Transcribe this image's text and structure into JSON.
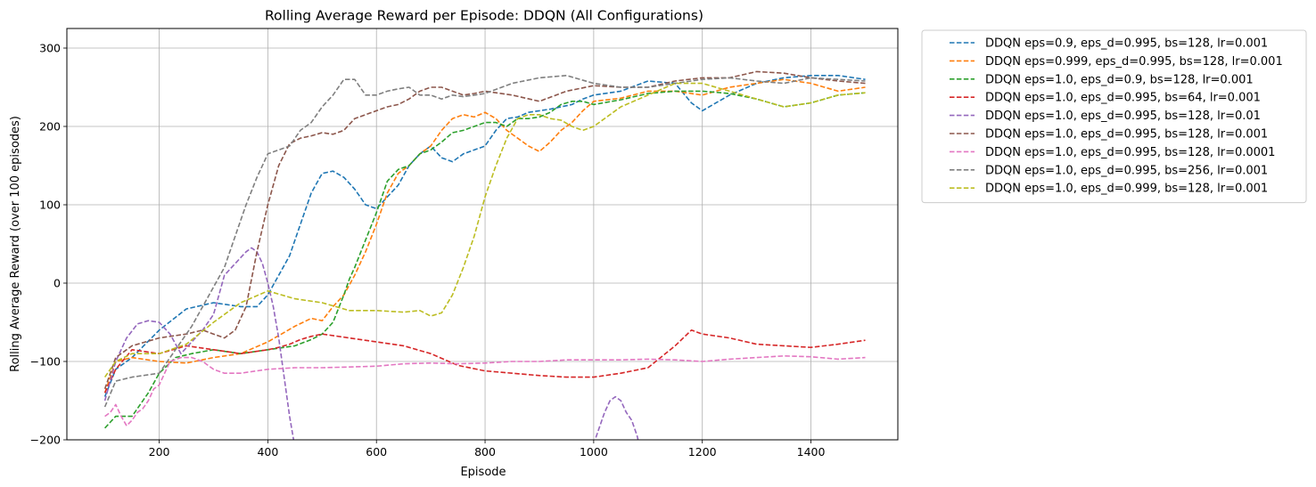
{
  "chart_data": {
    "type": "line",
    "title": "Rolling Average Reward per Episode: DDQN (All Configurations)",
    "xlabel": "Episode",
    "ylabel": "Rolling Average Reward (over 100 episodes)",
    "xlim": [
      30,
      1560
    ],
    "ylim": [
      -200,
      325
    ],
    "xticks": [
      200,
      400,
      600,
      800,
      1000,
      1200,
      1400
    ],
    "yticks": [
      -200,
      -100,
      0,
      100,
      200,
      300
    ],
    "grid": true,
    "line_style": "dashed",
    "legend_position": "outside-right-top",
    "series": [
      {
        "name": "DDQN eps=0.9, eps_d=0.995, bs=128, lr=0.001",
        "color": "#1f77b4",
        "x": [
          100,
          120,
          150,
          200,
          250,
          300,
          350,
          380,
          400,
          420,
          440,
          460,
          480,
          500,
          520,
          540,
          560,
          580,
          600,
          620,
          640,
          660,
          680,
          700,
          720,
          740,
          760,
          780,
          800,
          820,
          840,
          860,
          880,
          900,
          920,
          940,
          960,
          980,
          1000,
          1050,
          1100,
          1150,
          1180,
          1200,
          1250,
          1300,
          1350,
          1400,
          1450,
          1500
        ],
        "y": [
          -145,
          -110,
          -95,
          -60,
          -33,
          -25,
          -30,
          -30,
          -15,
          10,
          35,
          75,
          115,
          140,
          143,
          135,
          120,
          100,
          95,
          110,
          125,
          150,
          165,
          175,
          160,
          155,
          165,
          170,
          175,
          195,
          210,
          212,
          218,
          220,
          222,
          225,
          228,
          235,
          240,
          245,
          258,
          255,
          230,
          220,
          240,
          255,
          262,
          265,
          265,
          260
        ]
      },
      {
        "name": "DDQN eps=0.999, eps_d=0.995, bs=128, lr=0.001",
        "color": "#ff7f0e",
        "x": [
          100,
          120,
          150,
          200,
          250,
          300,
          350,
          400,
          450,
          480,
          500,
          520,
          540,
          560,
          580,
          600,
          620,
          640,
          660,
          680,
          700,
          720,
          740,
          760,
          780,
          800,
          820,
          840,
          860,
          880,
          900,
          920,
          940,
          960,
          980,
          1000,
          1050,
          1100,
          1150,
          1200,
          1250,
          1300,
          1350,
          1400,
          1450,
          1500
        ],
        "y": [
          -140,
          -100,
          -95,
          -100,
          -102,
          -95,
          -90,
          -75,
          -55,
          -45,
          -48,
          -30,
          -15,
          10,
          40,
          75,
          115,
          140,
          150,
          165,
          175,
          195,
          210,
          215,
          212,
          218,
          210,
          195,
          185,
          175,
          168,
          180,
          195,
          205,
          220,
          232,
          236,
          245,
          245,
          240,
          250,
          255,
          260,
          255,
          245,
          250
        ]
      },
      {
        "name": "DDQN eps=1.0, eps_d=0.9, bs=128, lr=0.001",
        "color": "#2ca02c",
        "x": [
          100,
          120,
          150,
          180,
          200,
          230,
          260,
          300,
          350,
          400,
          450,
          480,
          500,
          520,
          540,
          550,
          560,
          580,
          600,
          620,
          640,
          660,
          680,
          700,
          720,
          740,
          760,
          780,
          800,
          820,
          840,
          860,
          880,
          900,
          920,
          940,
          960,
          980,
          1000,
          1050,
          1100,
          1150,
          1200,
          1250,
          1300,
          1350,
          1400,
          1450,
          1500
        ],
        "y": [
          -185,
          -170,
          -170,
          -140,
          -115,
          -95,
          -90,
          -85,
          -90,
          -85,
          -80,
          -72,
          -65,
          -50,
          -15,
          5,
          20,
          55,
          90,
          130,
          145,
          150,
          165,
          170,
          180,
          192,
          195,
          200,
          205,
          205,
          200,
          210,
          210,
          212,
          218,
          228,
          232,
          232,
          228,
          234,
          242,
          245,
          245,
          242,
          235,
          225,
          230,
          240,
          243
        ]
      },
      {
        "name": "DDQN eps=1.0, eps_d=0.995, bs=64, lr=0.001",
        "color": "#d62728",
        "x": [
          100,
          120,
          150,
          200,
          250,
          300,
          350,
          400,
          420,
          440,
          460,
          480,
          500,
          550,
          600,
          650,
          700,
          750,
          800,
          850,
          900,
          950,
          1000,
          1050,
          1100,
          1150,
          1180,
          1200,
          1250,
          1300,
          1350,
          1400,
          1450,
          1500
        ],
        "y": [
          -140,
          -110,
          -85,
          -90,
          -80,
          -85,
          -90,
          -85,
          -82,
          -78,
          -72,
          -68,
          -65,
          -70,
          -75,
          -80,
          -90,
          -105,
          -112,
          -115,
          -118,
          -120,
          -120,
          -115,
          -108,
          -80,
          -60,
          -65,
          -70,
          -78,
          -80,
          -82,
          -78,
          -73
        ]
      },
      {
        "name": "DDQN eps=1.0, eps_d=0.995, bs=128, lr=0.01",
        "color": "#9467bd",
        "x": [
          100,
          120,
          140,
          160,
          180,
          200,
          220,
          240,
          260,
          280,
          300,
          320,
          340,
          360,
          370,
          380,
          390,
          400,
          410,
          420,
          430,
          440,
          450,
          455,
          992,
          1000,
          1010,
          1020,
          1030,
          1040,
          1050,
          1060,
          1070,
          1080,
          1085
        ],
        "y": [
          -150,
          -100,
          -70,
          -52,
          -48,
          -50,
          -65,
          -90,
          -75,
          -60,
          -40,
          10,
          25,
          40,
          45,
          40,
          25,
          0,
          -30,
          -70,
          -120,
          -170,
          -210,
          -230,
          -230,
          -205,
          -185,
          -165,
          -150,
          -145,
          -150,
          -165,
          -175,
          -195,
          -210
        ]
      },
      {
        "name": "DDQN eps=1.0, eps_d=0.995, bs=128, lr=0.001",
        "color": "#8c564b",
        "x": [
          100,
          120,
          150,
          200,
          250,
          280,
          300,
          320,
          340,
          360,
          380,
          400,
          420,
          440,
          460,
          480,
          500,
          520,
          540,
          560,
          580,
          600,
          620,
          640,
          660,
          680,
          700,
          720,
          740,
          760,
          780,
          800,
          850,
          900,
          950,
          1000,
          1050,
          1100,
          1150,
          1200,
          1250,
          1300,
          1350,
          1400,
          1450,
          1500
        ],
        "y": [
          -135,
          -95,
          -80,
          -70,
          -65,
          -60,
          -65,
          -70,
          -60,
          -30,
          40,
          100,
          150,
          178,
          185,
          188,
          192,
          190,
          195,
          210,
          215,
          220,
          225,
          228,
          235,
          245,
          250,
          250,
          245,
          240,
          242,
          245,
          240,
          232,
          245,
          252,
          250,
          250,
          258,
          262,
          262,
          270,
          268,
          262,
          258,
          255
        ]
      },
      {
        "name": "DDQN eps=1.0, eps_d=0.995, bs=128, lr=0.0001",
        "color": "#e377c2",
        "x": [
          100,
          110,
          120,
          130,
          140,
          150,
          160,
          170,
          180,
          190,
          200,
          220,
          240,
          260,
          280,
          300,
          320,
          350,
          400,
          450,
          500,
          550,
          600,
          650,
          700,
          750,
          800,
          850,
          900,
          950,
          1000,
          1050,
          1100,
          1150,
          1200,
          1250,
          1300,
          1350,
          1400,
          1450,
          1500
        ],
        "y": [
          -170,
          -165,
          -155,
          -170,
          -182,
          -175,
          -165,
          -160,
          -150,
          -135,
          -130,
          -100,
          -95,
          -95,
          -100,
          -110,
          -115,
          -115,
          -110,
          -108,
          -108,
          -107,
          -106,
          -103,
          -102,
          -103,
          -102,
          -100,
          -100,
          -98,
          -98,
          -98,
          -97,
          -98,
          -100,
          -97,
          -95,
          -93,
          -94,
          -97,
          -95
        ]
      },
      {
        "name": "DDQN eps=1.0, eps_d=0.995, bs=256, lr=0.001",
        "color": "#7f7f7f",
        "x": [
          100,
          120,
          150,
          200,
          230,
          260,
          300,
          320,
          340,
          360,
          380,
          400,
          420,
          440,
          460,
          480,
          500,
          520,
          540,
          560,
          580,
          600,
          620,
          640,
          660,
          680,
          700,
          720,
          740,
          760,
          780,
          800,
          850,
          900,
          950,
          1000,
          1050,
          1100,
          1150,
          1200,
          1250,
          1300,
          1350,
          1400,
          1450,
          1500
        ],
        "y": [
          -158,
          -125,
          -120,
          -115,
          -85,
          -55,
          -5,
          20,
          60,
          100,
          135,
          165,
          170,
          175,
          195,
          205,
          225,
          240,
          260,
          260,
          240,
          240,
          245,
          248,
          250,
          240,
          240,
          235,
          240,
          238,
          240,
          242,
          255,
          262,
          265,
          255,
          250,
          250,
          255,
          260,
          262,
          258,
          255,
          262,
          260,
          258
        ]
      },
      {
        "name": "DDQN eps=1.0, eps_d=0.999, bs=128, lr=0.001",
        "color": "#bcbd22",
        "x": [
          100,
          120,
          150,
          200,
          250,
          300,
          350,
          400,
          450,
          500,
          550,
          600,
          650,
          680,
          700,
          720,
          740,
          760,
          780,
          800,
          820,
          840,
          860,
          880,
          900,
          920,
          940,
          960,
          980,
          1000,
          1050,
          1100,
          1150,
          1200,
          1250,
          1300,
          1350,
          1400,
          1450,
          1500
        ],
        "y": [
          -120,
          -100,
          -90,
          -90,
          -78,
          -50,
          -25,
          -10,
          -20,
          -25,
          -35,
          -35,
          -37,
          -35,
          -42,
          -38,
          -15,
          20,
          60,
          110,
          150,
          185,
          210,
          215,
          215,
          210,
          208,
          200,
          195,
          200,
          225,
          240,
          255,
          255,
          245,
          235,
          225,
          230,
          240,
          243
        ]
      }
    ]
  }
}
